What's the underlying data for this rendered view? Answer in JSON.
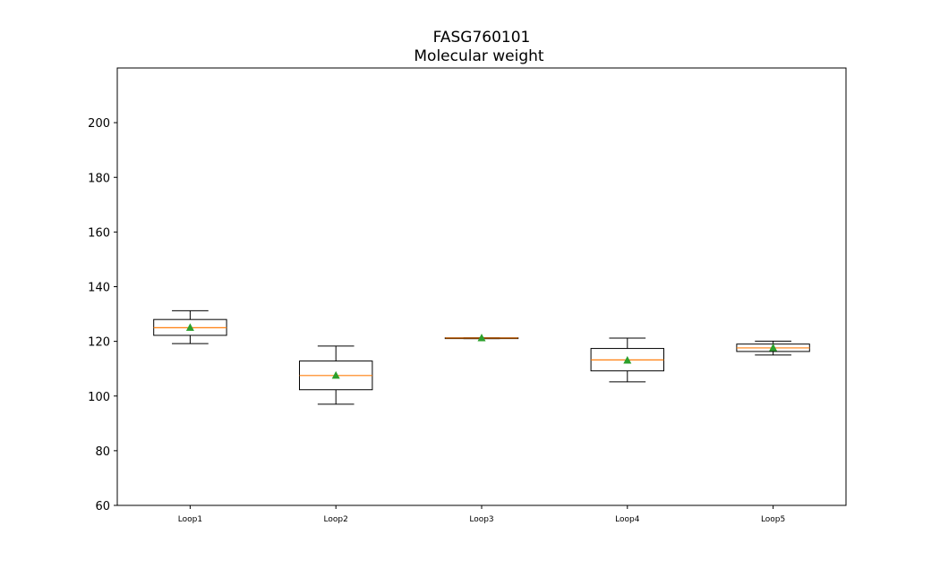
{
  "chart_data": {
    "type": "box",
    "title": "FASG760101",
    "subtitle": "Molecular weight",
    "xlabel": "",
    "ylabel": "",
    "ylim": [
      60,
      220
    ],
    "yticks": [
      60,
      80,
      100,
      120,
      140,
      160,
      180,
      200
    ],
    "grid": false,
    "categories": [
      "Loop1",
      "Loop2",
      "Loop3",
      "Loop4",
      "Loop5"
    ],
    "boxes": [
      {
        "whisker_low": 119.2,
        "q1": 122.2,
        "median": 125.0,
        "q3": 128.0,
        "whisker_high": 131.2,
        "mean": 125.0
      },
      {
        "whisker_low": 97.0,
        "q1": 102.3,
        "median": 107.5,
        "q3": 112.8,
        "whisker_high": 118.3,
        "mean": 107.5
      },
      {
        "whisker_low": 121.0,
        "q1": 121.0,
        "median": 121.2,
        "q3": 121.3,
        "whisker_high": 121.3,
        "mean": 121.2
      },
      {
        "whisker_low": 105.2,
        "q1": 109.2,
        "median": 113.2,
        "q3": 117.4,
        "whisker_high": 121.2,
        "mean": 113.0
      },
      {
        "whisker_low": 115.0,
        "q1": 116.3,
        "median": 117.6,
        "q3": 119.0,
        "whisker_high": 120.1,
        "mean": 117.6
      }
    ],
    "colors": {
      "median": "#ff7f0e",
      "mean": "#2ca02c",
      "box": "#000000"
    }
  }
}
